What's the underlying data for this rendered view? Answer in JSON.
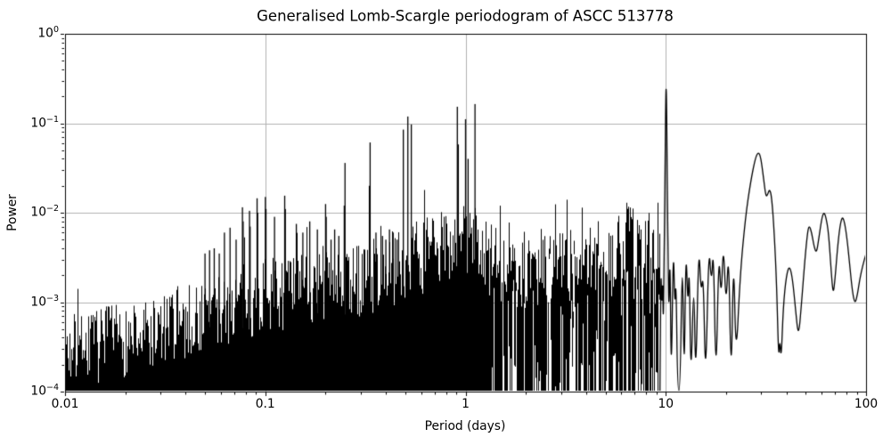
{
  "figure": {
    "title": "Generalised Lomb-Scargle periodogram of ASCC 513778",
    "xlabel": "Period (days)",
    "ylabel": "Power"
  },
  "chart_data": {
    "type": "line",
    "title": "Generalised Lomb-Scargle periodogram of ASCC 513778",
    "xlabel": "Period (days)",
    "ylabel": "Power",
    "x_scale": "log",
    "y_scale": "log",
    "xlim": [
      0.01,
      100
    ],
    "ylim": [
      0.0001,
      1
    ],
    "grid": true,
    "legend": "none",
    "line_color": "#000000",
    "grid_color": "#b0b0b0",
    "background": "#ffffff",
    "x_ticks": [
      {
        "value": 0.01,
        "label": "0.01"
      },
      {
        "value": 0.1,
        "label": "0.1"
      },
      {
        "value": 1,
        "label": "1"
      },
      {
        "value": 10,
        "label": "10"
      },
      {
        "value": 100,
        "label": "100"
      }
    ],
    "y_ticks": [
      {
        "value": 1,
        "label_base": "10",
        "label_exp": "0"
      },
      {
        "value": 0.1,
        "label_base": "10",
        "label_exp": "−1"
      },
      {
        "value": 0.01,
        "label_base": "10",
        "label_exp": "−2"
      },
      {
        "value": 0.001,
        "label_base": "10",
        "label_exp": "−3"
      },
      {
        "value": 0.0001,
        "label_base": "10",
        "label_exp": "−4"
      }
    ],
    "major_peaks": [
      [
        0.489,
        0.085
      ],
      [
        0.515,
        0.119
      ],
      [
        0.536,
        0.097
      ],
      [
        0.91,
        0.153
      ],
      [
        0.92,
        0.058
      ],
      [
        1.0,
        0.111
      ],
      [
        1.03,
        0.04
      ],
      [
        1.115,
        0.164
      ]
    ],
    "alias_comb": [
      [
        0.05,
        0.0035
      ],
      [
        0.0527,
        0.0038
      ],
      [
        0.0556,
        0.004
      ],
      [
        0.0589,
        0.0035
      ],
      [
        0.0625,
        0.006
      ],
      [
        0.0667,
        0.0068
      ],
      [
        0.0715,
        0.005
      ],
      [
        0.0769,
        0.0115
      ],
      [
        0.0775,
        0.008
      ],
      [
        0.0834,
        0.0105
      ],
      [
        0.084,
        0.007
      ],
      [
        0.091,
        0.0145
      ],
      [
        0.0916,
        0.01
      ],
      [
        0.1001,
        0.015
      ],
      [
        0.1008,
        0.011
      ],
      [
        0.1112,
        0.009
      ],
      [
        0.125,
        0.0155
      ],
      [
        0.1259,
        0.011
      ],
      [
        0.1429,
        0.0075
      ],
      [
        0.154,
        0.006
      ],
      [
        0.1667,
        0.008
      ],
      [
        0.182,
        0.0065
      ],
      [
        0.2,
        0.0125
      ],
      [
        0.2014,
        0.009
      ],
      [
        0.213,
        0.005
      ],
      [
        0.222,
        0.0065
      ],
      [
        0.233,
        0.0055
      ],
      [
        0.248,
        0.012
      ],
      [
        0.2501,
        0.036
      ],
      [
        0.331,
        0.02
      ],
      [
        0.3338,
        0.061
      ],
      [
        0.357,
        0.006
      ],
      [
        0.385,
        0.0055
      ],
      [
        0.4,
        0.005
      ],
      [
        0.417,
        0.0065
      ],
      [
        0.435,
        0.006
      ],
      [
        0.455,
        0.005
      ]
    ],
    "noise_envelope": [
      [
        0.01,
        0.00028
      ],
      [
        0.015,
        0.00033
      ],
      [
        0.022,
        0.0004
      ],
      [
        0.033,
        0.0005
      ],
      [
        0.05,
        0.0007
      ],
      [
        0.07,
        0.00095
      ],
      [
        0.1,
        0.0012
      ],
      [
        0.15,
        0.0013
      ],
      [
        0.2,
        0.0015
      ],
      [
        0.3,
        0.0018
      ],
      [
        0.4,
        0.0022
      ],
      [
        0.5,
        0.0028
      ],
      [
        0.6,
        0.0032
      ],
      [
        0.75,
        0.004
      ],
      [
        0.9,
        0.0055
      ],
      [
        1.05,
        0.005
      ],
      [
        1.2,
        0.0035
      ],
      [
        1.5,
        0.0024
      ],
      [
        2.0,
        0.0022
      ],
      [
        3.0,
        0.0028
      ],
      [
        4.0,
        0.0032
      ],
      [
        5.0,
        0.004
      ],
      [
        6.0,
        0.0042
      ],
      [
        7.5,
        0.0045
      ],
      [
        9.0,
        0.0032
      ],
      [
        9.35,
        0.0025
      ]
    ],
    "noise": {
      "seed": 7,
      "p_min": 0.01,
      "p_max": 9.35,
      "solid_below_period": 1.35,
      "top_jitter_dex": 0.42,
      "tail_prob": 0.1,
      "tail_boost_dex": 0.5,
      "floating_bottom_prob": 0.45,
      "low_top_prob": 0.1
    },
    "smooth_curve": [
      [
        9.35,
        0.0001
      ],
      [
        9.45,
        0.0033
      ],
      [
        9.55,
        0.0008
      ],
      [
        9.65,
        0.002
      ],
      [
        9.72,
        0.0005
      ],
      [
        9.8,
        0.003
      ],
      [
        9.88,
        0.012
      ],
      [
        9.95,
        0.08
      ],
      [
        10.0,
        0.2
      ],
      [
        10.04,
        0.26
      ],
      [
        10.09,
        0.17
      ],
      [
        10.14,
        0.05
      ],
      [
        10.2,
        0.012
      ],
      [
        10.28,
        0.0025
      ],
      [
        10.36,
        0.0007
      ],
      [
        10.5,
        0.0042
      ],
      [
        10.65,
        0.0001
      ],
      [
        10.9,
        0.0052
      ],
      [
        11.1,
        0.0008
      ],
      [
        11.25,
        0.002
      ],
      [
        11.45,
        0.0001
      ],
      [
        11.8,
        0.0001
      ],
      [
        12.1,
        0.005
      ],
      [
        12.35,
        0.0001
      ],
      [
        12.6,
        0.0048
      ],
      [
        12.9,
        0.0008
      ],
      [
        13.1,
        0.003
      ],
      [
        13.35,
        0.0001
      ],
      [
        13.8,
        0.0025
      ],
      [
        14.1,
        0.0001
      ],
      [
        14.6,
        0.005
      ],
      [
        15.0,
        0.0012
      ],
      [
        15.4,
        0.0022
      ],
      [
        15.8,
        0.0001
      ],
      [
        16.4,
        0.0048
      ],
      [
        16.9,
        0.0015
      ],
      [
        17.3,
        0.0045
      ],
      [
        17.8,
        0.0001
      ],
      [
        18.4,
        0.0042
      ],
      [
        18.9,
        0.001
      ],
      [
        19.4,
        0.005
      ],
      [
        20.0,
        0.0008
      ],
      [
        20.6,
        0.0045
      ],
      [
        21.2,
        0.0001
      ],
      [
        21.8,
        0.0042
      ],
      [
        22.4,
        0.0002
      ],
      [
        23.5,
        0.002
      ],
      [
        25,
        0.009
      ],
      [
        26.5,
        0.022
      ],
      [
        28,
        0.041
      ],
      [
        29,
        0.048
      ],
      [
        29.8,
        0.042
      ],
      [
        30.8,
        0.024
      ],
      [
        31.6,
        0.015
      ],
      [
        32.3,
        0.016
      ],
      [
        33,
        0.0185
      ],
      [
        33.8,
        0.015
      ],
      [
        34.8,
        0.006
      ],
      [
        35.8,
        0.0015
      ],
      [
        36.6,
        0.00022
      ],
      [
        37.1,
        0.0004
      ],
      [
        37.7,
        0.00022
      ],
      [
        38.6,
        0.0009
      ],
      [
        40,
        0.002
      ],
      [
        41.5,
        0.0026
      ],
      [
        43,
        0.0018
      ],
      [
        44.5,
        0.0008
      ],
      [
        46,
        0.0004
      ],
      [
        47.5,
        0.0009
      ],
      [
        49.5,
        0.003
      ],
      [
        51,
        0.006
      ],
      [
        52,
        0.0073
      ],
      [
        53.5,
        0.006
      ],
      [
        55,
        0.0042
      ],
      [
        56.5,
        0.0035
      ],
      [
        58,
        0.005
      ],
      [
        60,
        0.0085
      ],
      [
        61.5,
        0.0102
      ],
      [
        63,
        0.009
      ],
      [
        65,
        0.006
      ],
      [
        67,
        0.0022
      ],
      [
        68.5,
        0.0012
      ],
      [
        70,
        0.0018
      ],
      [
        72,
        0.004
      ],
      [
        74,
        0.007
      ],
      [
        76,
        0.0091
      ],
      [
        78,
        0.008
      ],
      [
        80.5,
        0.005
      ],
      [
        83,
        0.0025
      ],
      [
        85.5,
        0.0013
      ],
      [
        88,
        0.00095
      ],
      [
        90.5,
        0.0012
      ],
      [
        93,
        0.0018
      ],
      [
        96,
        0.0025
      ],
      [
        100,
        0.0035
      ]
    ]
  }
}
